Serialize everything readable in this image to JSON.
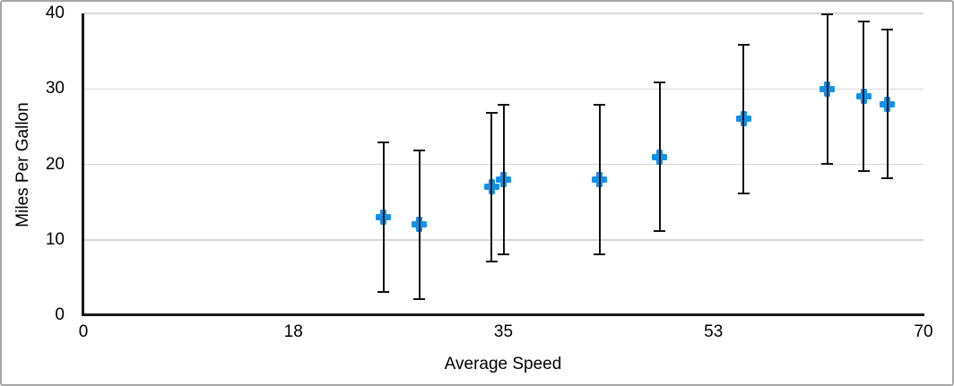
{
  "figure": {
    "background": "#ffffff",
    "frame_border_color": "#a6a6a6",
    "axis_line_color": "#1a1a1a",
    "gridline_color": "#d8d8d8",
    "text_color": "#000000"
  },
  "chart_data": {
    "type": "scatter",
    "title": "",
    "xlabel": "Average Speed",
    "ylabel": "Miles Per Gallon",
    "xlim": [
      0,
      70
    ],
    "ylim": [
      0,
      40
    ],
    "x_tick_labels": [
      "0",
      "18",
      "35",
      "53",
      "70"
    ],
    "y_tick_labels": [
      "0",
      "10",
      "20",
      "30",
      "40"
    ],
    "y_tick_values": [
      0,
      10,
      20,
      30,
      40
    ],
    "y_gridline_values": [
      10,
      20,
      30,
      40
    ],
    "grid": "horizontal-only",
    "legend": "none",
    "series": [
      {
        "name": "Miles Per Gallon",
        "marker": "plus",
        "marker_color": "#1092e8",
        "error_bar_color": "#111111",
        "y_error": 10,
        "points": [
          {
            "x": 25,
            "y": 13
          },
          {
            "x": 28,
            "y": 12
          },
          {
            "x": 34,
            "y": 17
          },
          {
            "x": 35,
            "y": 18
          },
          {
            "x": 43,
            "y": 18
          },
          {
            "x": 48,
            "y": 21
          },
          {
            "x": 55,
            "y": 26
          },
          {
            "x": 62,
            "y": 30
          },
          {
            "x": 65,
            "y": 29
          },
          {
            "x": 67,
            "y": 28
          }
        ]
      }
    ]
  }
}
